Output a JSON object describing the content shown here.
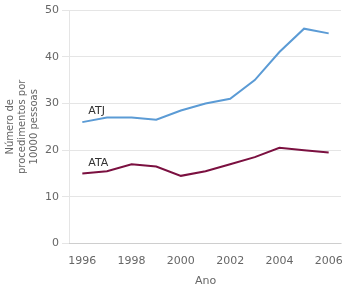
{
  "chart_data": {
    "type": "line",
    "xlabel": "Ano",
    "ylabel": [
      "Número de",
      "procedimentos por",
      "10000 pessoas"
    ],
    "x": [
      1996,
      1997,
      1998,
      1999,
      2000,
      2001,
      2002,
      2003,
      2004,
      2005,
      2006
    ],
    "series": [
      {
        "name": "ATJ",
        "color": "#5b9bd5",
        "values": [
          26,
          27,
          27,
          26.5,
          28.5,
          30,
          31,
          35,
          41,
          46,
          45
        ]
      },
      {
        "name": "ATA",
        "color": "#7b1040",
        "values": [
          15,
          15.5,
          17,
          16.5,
          14.5,
          15.5,
          17,
          18.5,
          20.5,
          20,
          19.5
        ]
      }
    ],
    "xlim": [
      1995.5,
      2006.5
    ],
    "ylim": [
      0,
      50
    ],
    "xticks": [
      1996,
      1998,
      2000,
      2002,
      2004,
      2006
    ],
    "yticks": [
      0,
      10,
      20,
      30,
      40,
      50
    ],
    "grid": "y"
  }
}
